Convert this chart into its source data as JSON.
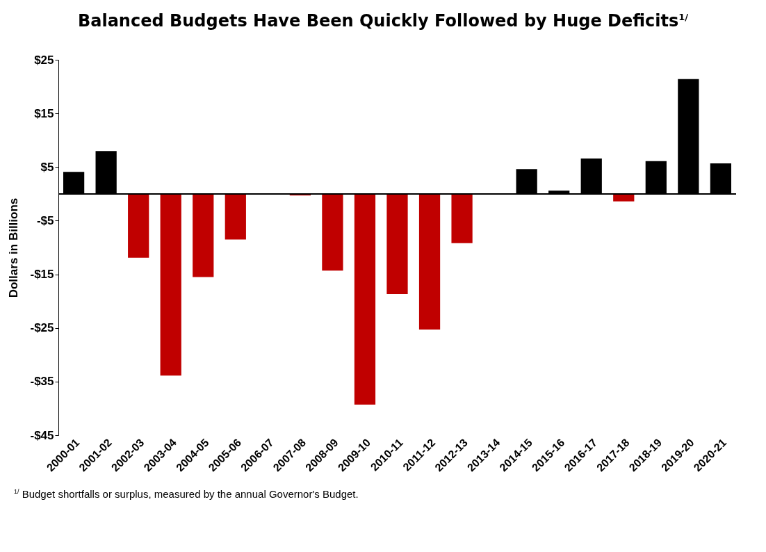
{
  "chart_data": {
    "type": "bar",
    "title": "Balanced Budgets Have Been Quickly Followed by Huge Deficits$^{1/}$",
    "ylabel": "Dollars in Billions",
    "categories": [
      "2000-01",
      "2001-02",
      "2002-03",
      "2003-04",
      "2004-05",
      "2005-06",
      "2006-07",
      "2007-08",
      "2008-09",
      "2009-10",
      "2010-11",
      "2011-12",
      "2012-13",
      "2013-14",
      "2014-15",
      "2015-16",
      "2016-17",
      "2017-18",
      "2018-19",
      "2019-20",
      "2020-21"
    ],
    "values": [
      4.1,
      8.0,
      -11.9,
      -33.9,
      -15.5,
      -8.5,
      0,
      -0.3,
      -14.3,
      -39.3,
      -18.7,
      -25.3,
      -9.2,
      0,
      4.6,
      0.6,
      6.6,
      -1.4,
      6.1,
      21.4,
      5.7
    ],
    "colors": [
      "#000000",
      "#000000",
      "#c00000",
      "#c00000",
      "#c00000",
      "#c00000",
      "#000000",
      "#c00000",
      "#c00000",
      "#c00000",
      "#c00000",
      "#c00000",
      "#c00000",
      "#000000",
      "#000000",
      "#000000",
      "#000000",
      "#c00000",
      "#000000",
      "#000000",
      "#000000"
    ],
    "ylim": [
      -45,
      25
    ],
    "yticks": [
      {
        "value": 25,
        "label": "$25"
      },
      {
        "value": 15,
        "label": "$15"
      },
      {
        "value": 5,
        "label": "$5"
      },
      {
        "value": -5,
        "label": "-$5"
      },
      {
        "value": -15,
        "label": "-$15"
      },
      {
        "value": -25,
        "label": "-$25"
      },
      {
        "value": -35,
        "label": "-$35"
      },
      {
        "value": -45,
        "label": "-$45"
      }
    ],
    "grid": false,
    "annotations": [
      "$^{1/}$ Budget shortfalls or surplus, measured by the annual Governor's Budget."
    ]
  }
}
